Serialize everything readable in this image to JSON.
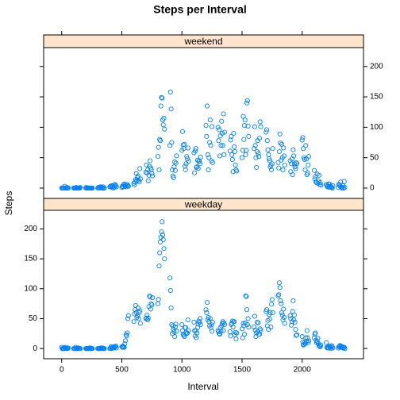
{
  "chart_data": {
    "type": "scatter",
    "title": "Steps per Interval",
    "xlabel": "Interval",
    "ylabel": "Steps",
    "xlim": [
      -150,
      2510
    ],
    "xticks": [
      0,
      500,
      1000,
      1500,
      2000
    ],
    "ylim": [
      -17,
      231
    ],
    "yticks": [
      0,
      50,
      100,
      150,
      200
    ],
    "x": [
      0,
      5,
      10,
      15,
      20,
      25,
      30,
      35,
      40,
      45,
      50,
      55,
      100,
      105,
      110,
      115,
      120,
      125,
      130,
      135,
      140,
      145,
      150,
      155,
      200,
      205,
      210,
      215,
      220,
      225,
      230,
      235,
      240,
      245,
      250,
      255,
      300,
      305,
      310,
      315,
      320,
      325,
      330,
      335,
      340,
      345,
      350,
      355,
      400,
      405,
      410,
      415,
      420,
      425,
      430,
      435,
      440,
      445,
      450,
      455,
      500,
      505,
      510,
      515,
      520,
      525,
      530,
      535,
      540,
      545,
      550,
      555,
      600,
      605,
      610,
      615,
      620,
      625,
      630,
      635,
      640,
      645,
      650,
      655,
      700,
      705,
      710,
      715,
      720,
      725,
      730,
      735,
      740,
      745,
      750,
      755,
      800,
      805,
      810,
      815,
      820,
      825,
      830,
      835,
      840,
      845,
      850,
      855,
      900,
      905,
      910,
      915,
      920,
      925,
      930,
      935,
      940,
      945,
      950,
      955,
      1000,
      1005,
      1010,
      1015,
      1020,
      1025,
      1030,
      1035,
      1040,
      1045,
      1050,
      1055,
      1100,
      1105,
      1110,
      1115,
      1120,
      1125,
      1130,
      1135,
      1140,
      1145,
      1150,
      1155,
      1200,
      1205,
      1210,
      1215,
      1220,
      1225,
      1230,
      1235,
      1240,
      1245,
      1250,
      1255,
      1300,
      1305,
      1310,
      1315,
      1320,
      1325,
      1330,
      1335,
      1340,
      1345,
      1350,
      1355,
      1400,
      1405,
      1410,
      1415,
      1420,
      1425,
      1430,
      1435,
      1440,
      1445,
      1450,
      1455,
      1500,
      1505,
      1510,
      1515,
      1520,
      1525,
      1530,
      1535,
      1540,
      1545,
      1550,
      1555,
      1600,
      1605,
      1610,
      1615,
      1620,
      1625,
      1630,
      1635,
      1640,
      1645,
      1650,
      1655,
      1700,
      1705,
      1710,
      1715,
      1720,
      1725,
      1730,
      1735,
      1740,
      1745,
      1750,
      1755,
      1800,
      1805,
      1810,
      1815,
      1820,
      1825,
      1830,
      1835,
      1840,
      1845,
      1850,
      1855,
      1900,
      1905,
      1910,
      1915,
      1920,
      1925,
      1930,
      1935,
      1940,
      1945,
      1950,
      1955,
      2000,
      2005,
      2010,
      2015,
      2020,
      2025,
      2030,
      2035,
      2040,
      2045,
      2050,
      2055,
      2100,
      2105,
      2110,
      2115,
      2120,
      2125,
      2130,
      2135,
      2140,
      2145,
      2150,
      2155,
      2200,
      2205,
      2210,
      2215,
      2220,
      2225,
      2230,
      2235,
      2240,
      2245,
      2250,
      2255,
      2300,
      2305,
      2310,
      2315,
      2320,
      2325,
      2330,
      2335,
      2340,
      2345,
      2350,
      2355
    ],
    "series": [
      {
        "name": "weekend",
        "color": "#0080ff",
        "values": [
          0,
          0,
          0,
          0,
          0,
          3,
          0,
          0,
          0,
          1,
          0,
          0,
          0,
          0,
          0,
          0,
          1,
          0,
          0,
          0,
          0,
          0,
          0,
          1,
          0,
          1,
          0,
          0,
          0,
          0,
          0,
          0,
          0,
          0,
          0,
          0,
          0,
          1,
          1,
          0,
          2,
          1,
          2,
          0,
          0,
          2,
          0,
          0,
          2,
          3,
          2,
          4,
          1,
          3,
          0,
          5,
          2,
          6,
          4,
          2,
          1,
          3,
          2,
          5,
          7,
          3,
          5,
          2,
          4,
          6,
          4,
          3,
          8,
          5,
          10,
          14,
          24,
          12,
          17,
          20,
          13,
          10,
          32,
          15,
          26,
          38,
          25,
          30,
          12,
          21,
          36,
          45,
          33,
          30,
          24,
          20,
          52,
          67,
          30,
          80,
          78,
          135,
          149,
          148,
          112,
          104,
          115,
          97,
          70,
          158,
          130,
          75,
          30,
          20,
          17,
          35,
          43,
          29,
          41,
          53,
          62,
          93,
          71,
          65,
          72,
          36,
          30,
          40,
          52,
          48,
          66,
          44,
          58,
          25,
          61,
          65,
          34,
          35,
          46,
          32,
          44,
          44,
          40,
          51,
          103,
          85,
          135,
          55,
          30,
          50,
          75,
          112,
          70,
          45,
          101,
          42,
          100,
          78,
          96,
          53,
          86,
          70,
          110,
          90,
          70,
          122,
          55,
          92,
          61,
          79,
          85,
          55,
          47,
          27,
          90,
          68,
          60,
          38,
          30,
          28,
          50,
          62,
          118,
          80,
          103,
          112,
          55,
          62,
          140,
          144,
          102,
          85,
          65,
          101,
          70,
          50,
          34,
          60,
          78,
          57,
          52,
          82,
          109,
          101,
          92,
          96,
          78,
          63,
          55,
          48,
          45,
          35,
          38,
          30,
          40,
          65,
          42,
          33,
          60,
          89,
          74,
          46,
          72,
          50,
          30,
          66,
          53,
          38,
          45,
          27,
          40,
          48,
          22,
          63,
          53,
          40,
          35,
          32,
          42,
          40,
          79,
          83,
          65,
          50,
          47,
          30,
          70,
          48,
          22,
          25,
          38,
          52,
          29,
          15,
          19,
          10,
          9,
          23,
          8,
          12,
          21,
          6,
          9,
          5,
          6,
          4,
          2,
          3,
          7,
          1,
          6,
          3,
          2,
          1,
          0,
          4,
          1,
          6,
          5,
          3,
          10,
          2,
          0,
          1,
          4,
          0,
          11,
          1
        ]
      },
      {
        "name": "weekday",
        "color": "#0080ff",
        "values": [
          2,
          0,
          0,
          0,
          0,
          2,
          1,
          1,
          0,
          1,
          0,
          1,
          0,
          0,
          0,
          2,
          0,
          0,
          0,
          1,
          1,
          0,
          0,
          0,
          0,
          0,
          0,
          0,
          0,
          0,
          1,
          0,
          1,
          0,
          0,
          0,
          0,
          0,
          0,
          0,
          0,
          1,
          1,
          0,
          1,
          0,
          0,
          0,
          0,
          1,
          3,
          0,
          1,
          2,
          3,
          1,
          2,
          3,
          4,
          1,
          3,
          2,
          4,
          3,
          2,
          8,
          13,
          23,
          21,
          26,
          50,
          55,
          45,
          58,
          65,
          72,
          60,
          52,
          55,
          68,
          50,
          60,
          63,
          42,
          50,
          51,
          56,
          48,
          51,
          70,
          88,
          86,
          66,
          75,
          73,
          85,
          75,
          82,
          138,
          160,
          178,
          186,
          195,
          212,
          190,
          182,
          167,
          150,
          118,
          97,
          68,
          40,
          25,
          38,
          32,
          28,
          20,
          36,
          41,
          29,
          40,
          30,
          24,
          22,
          20,
          35,
          35,
          27,
          25,
          26,
          48,
          30,
          44,
          30,
          21,
          30,
          18,
          26,
          35,
          41,
          46,
          44,
          50,
          40,
          65,
          60,
          77,
          48,
          52,
          45,
          38,
          50,
          35,
          40,
          29,
          44,
          30,
          28,
          25,
          24,
          35,
          29,
          38,
          42,
          45,
          30,
          43,
          40,
          28,
          21,
          40,
          42,
          46,
          36,
          45,
          45,
          23,
          27,
          16,
          26,
          33,
          18,
          42,
          38,
          24,
          43,
          88,
          87,
          65,
          40,
          50,
          36,
          36,
          54,
          31,
          20,
          26,
          44,
          28,
          43,
          24,
          24,
          33,
          31,
          62,
          65,
          38,
          47,
          32,
          57,
          49,
          60,
          36,
          74,
          82,
          60,
          88,
          90,
          110,
          102,
          80,
          75,
          60,
          56,
          48,
          66,
          52,
          42,
          55,
          50,
          39,
          45,
          62,
          80,
          48,
          56,
          44,
          32,
          22,
          23,
          20,
          11,
          6,
          7,
          10,
          8,
          18,
          12,
          30,
          18,
          10,
          13,
          18,
          24,
          26,
          14,
          10,
          12,
          17,
          8,
          5,
          4,
          3,
          6,
          10,
          2,
          1,
          2,
          1,
          4,
          3,
          2,
          0,
          5,
          3,
          1,
          1,
          3,
          4,
          5,
          2,
          4,
          2,
          3,
          1,
          1,
          2,
          0
        ]
      }
    ]
  }
}
